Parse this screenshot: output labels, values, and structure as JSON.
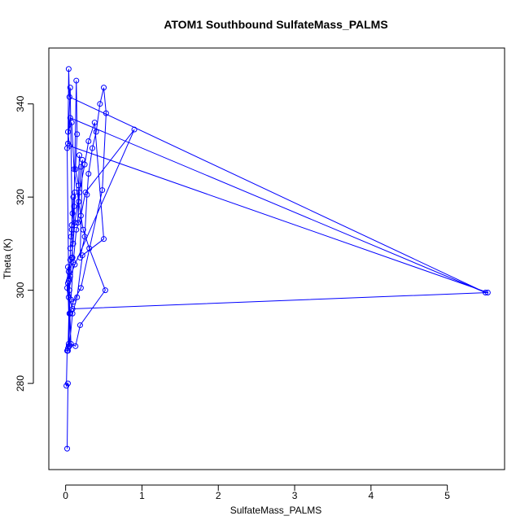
{
  "chart_data": {
    "type": "line",
    "title": "ATOM1 Southbound SulfateMass_PALMS",
    "xlabel": "SulfateMass_PALMS",
    "ylabel": "Theta (K)",
    "xlim": [
      -0.22,
      5.75
    ],
    "ylim": [
      261.5,
      352.0
    ],
    "xticks": [
      0,
      1,
      2,
      3,
      4,
      5
    ],
    "yticks": [
      280,
      300,
      320,
      340
    ],
    "grid": false,
    "legend": "none",
    "series_color": "#0000ff",
    "series": [
      {
        "x": [
          0.02,
          0.03,
          0.01,
          0.02,
          0.04,
          0.03,
          0.05,
          0.02,
          0.03,
          0.04,
          0.06,
          0.05,
          0.07,
          0.08,
          0.06,
          0.09,
          0.1,
          0.08,
          0.11,
          0.12,
          0.1,
          0.14,
          0.15,
          0.13,
          0.17,
          0.18,
          0.16,
          0.2,
          0.22,
          0.19,
          0.25,
          0.28,
          0.3,
          0.35,
          0.4,
          0.45,
          0.5,
          0.53,
          0.48,
          0.2,
          0.1,
          0.06,
          0.04,
          0.03,
          0.05,
          0.08,
          0.12,
          0.18,
          0.25,
          0.3,
          0.38,
          0.5,
          0.22,
          0.15,
          0.09,
          0.05,
          0.03,
          0.07,
          0.1,
          0.14,
          0.2,
          0.26,
          0.9,
          0.12,
          0.06,
          0.04,
          0.09,
          5.53,
          0.05,
          0.03,
          0.08,
          0.11,
          0.17,
          0.23,
          0.31,
          0.52,
          0.19,
          0.13,
          0.07,
          0.04,
          0.02,
          0.06,
          5.5,
          0.05,
          0.04,
          0.03,
          0.06,
          0.09
        ],
        "y": [
          266,
          280,
          279.5,
          287,
          288.5,
          287.5,
          295,
          300.5,
          305,
          304,
          306.5,
          302.5,
          311.5,
          313,
          309,
          316.5,
          320,
          314,
          318,
          321,
          310,
          345,
          333.5,
          326,
          322.5,
          329,
          314.5,
          326.5,
          328,
          307,
          311.5,
          320.5,
          325,
          330.5,
          334,
          340,
          343.5,
          338,
          321.5,
          300.5,
          297.5,
          295,
          288,
          287,
          300,
          307,
          314.5,
          321,
          327,
          332,
          336,
          311,
          307.5,
          298.5,
          295,
          288,
          301.5,
          298,
          306,
          313,
          316,
          321,
          334.5,
          305.5,
          303,
          298.5,
          296,
          299.5,
          331,
          334,
          336,
          326,
          319,
          313,
          309,
          300,
          292.5,
          288,
          288.5,
          302,
          330.5,
          337,
          299.5,
          341.5,
          347.5,
          331.5,
          343.5,
          307
        ]
      }
    ]
  }
}
